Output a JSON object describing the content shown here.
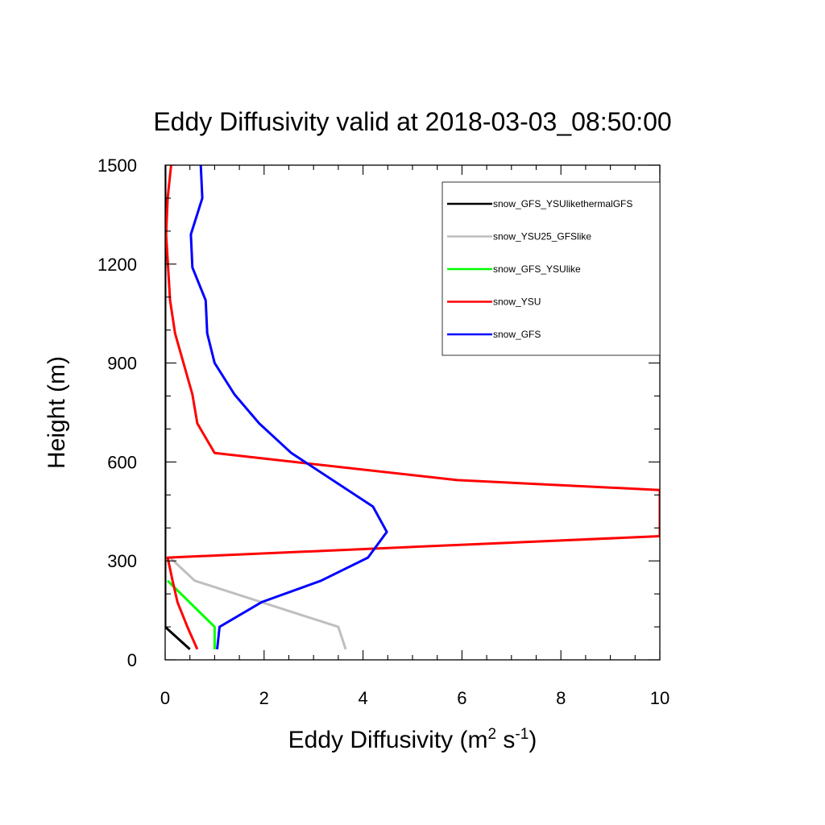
{
  "chart_data": {
    "type": "line",
    "title": "Eddy Diffusivity valid at 2018-03-03_08:50:00",
    "xlabel": "Eddy Diffusivity (m",
    "xlabel_sup1": "2",
    "xlabel_mid": " s",
    "xlabel_sup2": "-1",
    "xlabel_end": ")",
    "ylabel": "Height (m)",
    "xlim": [
      0,
      10
    ],
    "ylim": [
      0,
      1500
    ],
    "xticks": [
      "0",
      "2",
      "4",
      "6",
      "8",
      "10"
    ],
    "yticks": [
      "0",
      "300",
      "600",
      "900",
      "1200",
      "1500"
    ],
    "legend_placement": "top-right",
    "grid": false,
    "series": [
      {
        "name": "snow_GFS_YSUlikethermalGFS",
        "color": "#000000",
        "points": [
          [
            0.5,
            32
          ],
          [
            0,
            100
          ],
          [
            0,
            310
          ],
          [
            0,
            1500
          ]
        ]
      },
      {
        "name": "snow_YSU25_GFSlike",
        "color": "#bfbfbf",
        "points": [
          [
            3.65,
            32
          ],
          [
            3.5,
            100
          ],
          [
            0.6,
            240
          ],
          [
            0.1,
            310
          ]
        ]
      },
      {
        "name": "snow_GFS_YSUlike",
        "color": "#00ff00",
        "points": [
          [
            1.0,
            32
          ],
          [
            1.0,
            100
          ],
          [
            0.05,
            240
          ]
        ]
      },
      {
        "name": "snow_YSU",
        "color": "#ff0000",
        "points": [
          [
            0.65,
            32
          ],
          [
            0.45,
            100
          ],
          [
            0.25,
            175
          ],
          [
            0.15,
            240
          ],
          [
            0.05,
            310
          ],
          [
            10,
            375
          ],
          [
            10,
            515
          ],
          [
            5.9,
            545
          ],
          [
            1.0,
            627
          ],
          [
            0.65,
            717
          ],
          [
            0.55,
            805
          ],
          [
            0.2,
            990
          ],
          [
            0.1,
            1090
          ],
          [
            0.02,
            1290
          ],
          [
            0.05,
            1400
          ],
          [
            0.12,
            1500
          ]
        ]
      },
      {
        "name": "snow_GFS",
        "color": "#0000ff",
        "points": [
          [
            1.05,
            32
          ],
          [
            1.1,
            100
          ],
          [
            1.95,
            175
          ],
          [
            3.15,
            240
          ],
          [
            4.1,
            310
          ],
          [
            4.48,
            388
          ],
          [
            4.2,
            465
          ],
          [
            2.55,
            627
          ],
          [
            1.9,
            717
          ],
          [
            1.4,
            805
          ],
          [
            1.0,
            900
          ],
          [
            0.85,
            990
          ],
          [
            0.82,
            1090
          ],
          [
            0.55,
            1190
          ],
          [
            0.52,
            1290
          ],
          [
            0.75,
            1400
          ],
          [
            0.72,
            1500
          ]
        ]
      }
    ]
  }
}
